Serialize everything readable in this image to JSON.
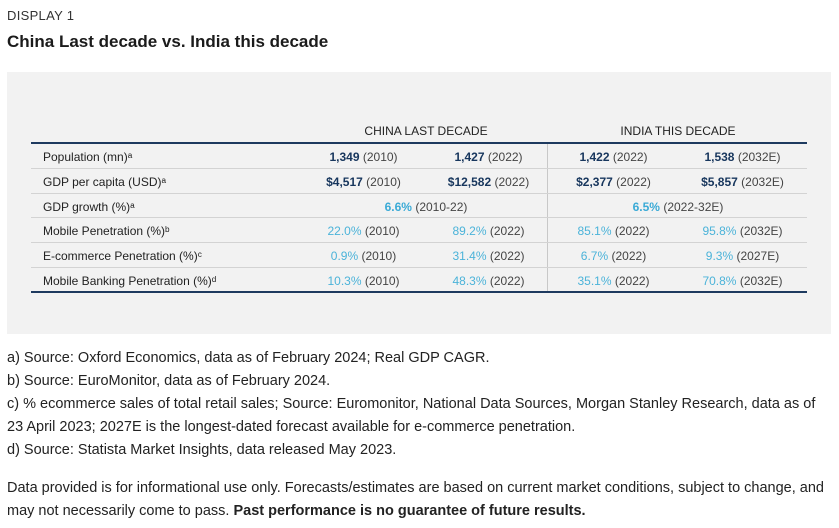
{
  "display_label": "DISPLAY 1",
  "title": "China Last decade vs. India this decade",
  "table": {
    "headers": {
      "china": "CHINA LAST DECADE",
      "india": "INDIA THIS DECADE"
    },
    "rows": [
      {
        "label": "Population (mn)ᵃ",
        "cells": [
          {
            "value": "1,349",
            "year": "(2010)",
            "style": "dark"
          },
          {
            "value": "1,427",
            "year": "(2022)",
            "style": "dark"
          },
          {
            "value": "1,422",
            "year": "(2022)",
            "style": "dark"
          },
          {
            "value": "1,538",
            "year": "(2032E)",
            "style": "dark"
          }
        ]
      },
      {
        "label": "GDP per capita (USD)ᵃ",
        "cells": [
          {
            "value": "$4,517",
            "year": "(2010)",
            "style": "dark"
          },
          {
            "value": "$12,582",
            "year": "(2022)",
            "style": "dark"
          },
          {
            "value": "$2,377",
            "year": "(2022)",
            "style": "dark"
          },
          {
            "value": "$5,857",
            "year": "(2032E)",
            "style": "dark"
          }
        ]
      },
      {
        "label": "GDP growth (%)ᵃ",
        "wide": [
          {
            "value": "6.6%",
            "year": "(2010-22)"
          },
          {
            "value": "6.5%",
            "year": "(2022-32E)"
          }
        ]
      },
      {
        "label": "Mobile Penetration (%)ᵇ",
        "cells": [
          {
            "value": "22.0%",
            "year": "(2010)",
            "style": "blue"
          },
          {
            "value": "89.2%",
            "year": "(2022)",
            "style": "blue"
          },
          {
            "value": "85.1%",
            "year": "(2022)",
            "style": "blue"
          },
          {
            "value": "95.8%",
            "year": "(2032E)",
            "style": "blue"
          }
        ]
      },
      {
        "label": "E-commerce Penetration (%)ᶜ",
        "cells": [
          {
            "value": "0.9%",
            "year": "(2010)",
            "style": "blue"
          },
          {
            "value": "31.4%",
            "year": "(2022)",
            "style": "blue"
          },
          {
            "value": "6.7%",
            "year": "(2022)",
            "style": "blue"
          },
          {
            "value": "9.3%",
            "year": "(2027E)",
            "style": "blue"
          }
        ]
      },
      {
        "label": "Mobile Banking Penetration (%)ᵈ",
        "cells": [
          {
            "value": "10.3%",
            "year": "(2010)",
            "style": "blue"
          },
          {
            "value": "48.3%",
            "year": "(2022)",
            "style": "blue"
          },
          {
            "value": "35.1%",
            "year": "(2022)",
            "style": "blue"
          },
          {
            "value": "70.8%",
            "year": "(2032E)",
            "style": "blue"
          }
        ]
      }
    ]
  },
  "notes": [
    "a) Source: Oxford Economics, data as of February 2024; Real GDP CAGR.",
    "b) Source: EuroMonitor, data as of February 2024.",
    "c) % ecommerce sales of total retail sales; Source: Euromonitor, National Data Sources, Morgan Stanley Research, data as of 23 April 2023; 2027E is the longest-dated forecast available for e-commerce penetration.",
    "d) Source: Statista Market Insights, data released May 2023."
  ],
  "disclaimer": {
    "text": "Data provided is for informational use only. Forecasts/estimates are based on current market conditions, subject to change, and may not necessarily come to pass. ",
    "bold": "Past performance is no guarantee of future results."
  }
}
